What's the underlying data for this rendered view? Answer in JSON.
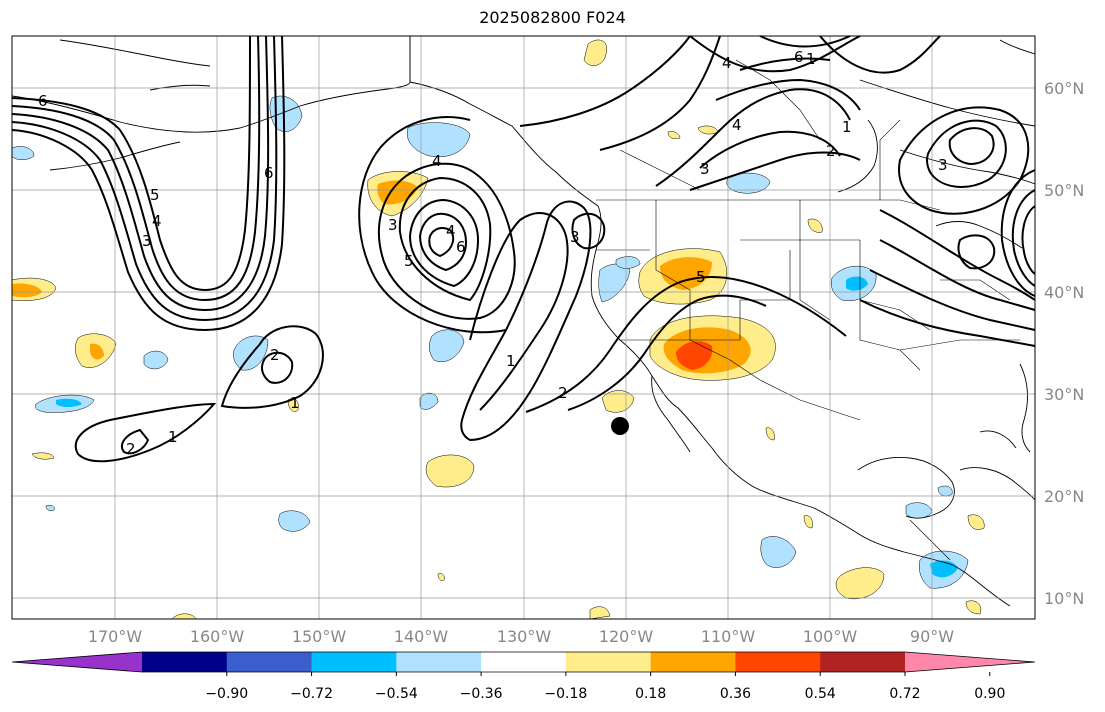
{
  "title": "2025082800 F024",
  "lat_labels": [
    "60°N",
    "50°N",
    "40°N",
    "30°N",
    "20°N",
    "10°N"
  ],
  "lon_labels": [
    "170°W",
    "160°W",
    "150°W",
    "140°W",
    "130°W",
    "120°W",
    "110°W",
    "100°W",
    "90°W"
  ],
  "colorbar": {
    "colors": [
      "#9932cc",
      "#00008b",
      "#3a5fcd",
      "#00bfff",
      "#b0e2ff",
      "#ffffff",
      "#ffec8b",
      "#ffa500",
      "#ff4500",
      "#b22222",
      "#ff88aa"
    ],
    "tick_labels": [
      "−0.90",
      "−0.72",
      "−0.54",
      "−0.36",
      "−0.18",
      "0.18",
      "0.36",
      "0.54",
      "0.72",
      "0.90"
    ]
  },
  "contour_labels": [
    "6",
    "5",
    "4",
    "3",
    "2",
    "1",
    "2",
    "1",
    "6",
    "4",
    "3",
    "5",
    "4",
    "6",
    "1",
    "2",
    "3",
    "5",
    "4",
    "3",
    "4",
    "2",
    "1",
    "3",
    "6",
    "1"
  ],
  "point_marker": "storm-center"
}
